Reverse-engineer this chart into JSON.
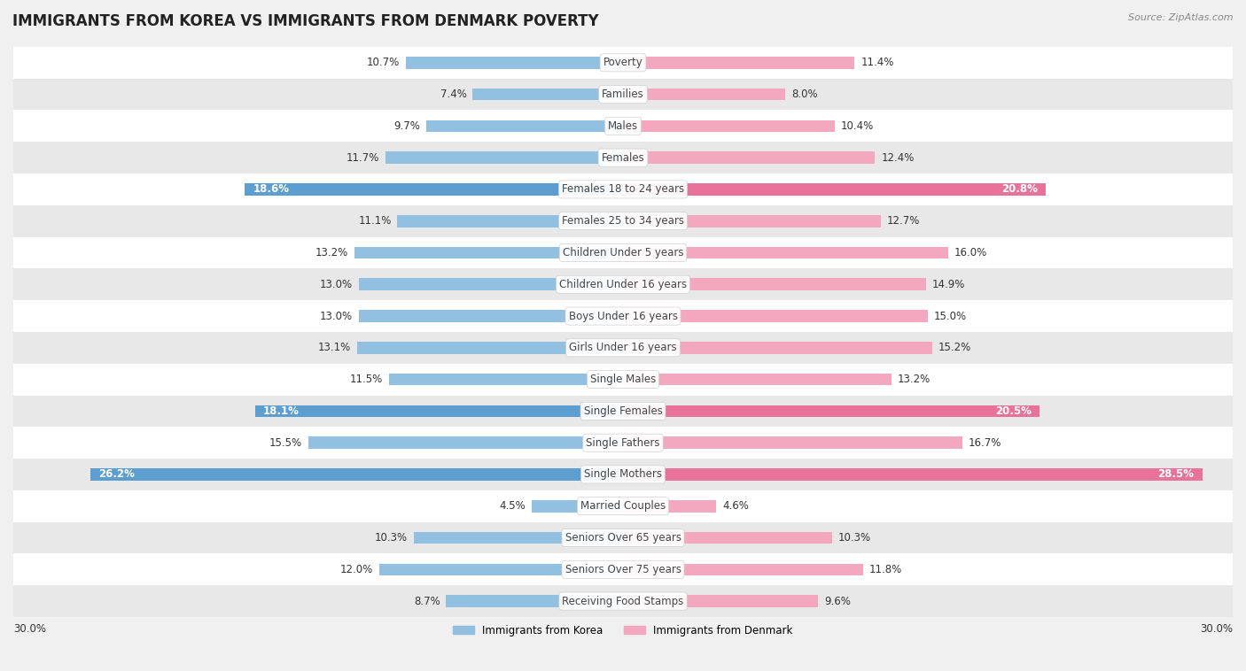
{
  "title": "IMMIGRANTS FROM KOREA VS IMMIGRANTS FROM DENMARK POVERTY",
  "source": "Source: ZipAtlas.com",
  "categories": [
    "Poverty",
    "Families",
    "Males",
    "Females",
    "Females 18 to 24 years",
    "Females 25 to 34 years",
    "Children Under 5 years",
    "Children Under 16 years",
    "Boys Under 16 years",
    "Girls Under 16 years",
    "Single Males",
    "Single Females",
    "Single Fathers",
    "Single Mothers",
    "Married Couples",
    "Seniors Over 65 years",
    "Seniors Over 75 years",
    "Receiving Food Stamps"
  ],
  "korea_values": [
    10.7,
    7.4,
    9.7,
    11.7,
    18.6,
    11.1,
    13.2,
    13.0,
    13.0,
    13.1,
    11.5,
    18.1,
    15.5,
    26.2,
    4.5,
    10.3,
    12.0,
    8.7
  ],
  "denmark_values": [
    11.4,
    8.0,
    10.4,
    12.4,
    20.8,
    12.7,
    16.0,
    14.9,
    15.0,
    15.2,
    13.2,
    20.5,
    16.7,
    28.5,
    4.6,
    10.3,
    11.8,
    9.6
  ],
  "korea_color": "#92c0e0",
  "denmark_color": "#f4a8c0",
  "korea_highlight_indices": [
    4,
    11,
    13
  ],
  "denmark_highlight_indices": [
    4,
    11,
    13
  ],
  "korea_highlight_color": "#5b9ecf",
  "denmark_highlight_color": "#e8729a",
  "bar_height": 0.38,
  "bg_color": "#f0f0f0",
  "row_white_color": "#ffffff",
  "row_gray_color": "#e8e8e8",
  "label_fontsize": 8.5,
  "value_fontsize": 8.5,
  "title_fontsize": 12,
  "legend_korea": "Immigrants from Korea",
  "legend_denmark": "Immigrants from Denmark"
}
